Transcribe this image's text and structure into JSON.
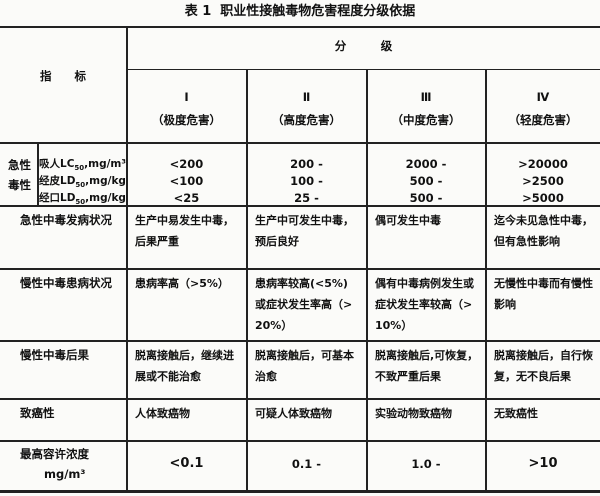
{
  "title": "表 1  职业性接触毒物危害程度分级依据",
  "header": {
    "indicator": "指　　标",
    "grading": "分　　　级",
    "levels": [
      {
        "roman": "Ⅰ",
        "label": "（极度危害）"
      },
      {
        "roman": "Ⅱ",
        "label": "（高度危害）"
      },
      {
        "roman": "Ⅲ",
        "label": "（中度危害）"
      },
      {
        "roman": "Ⅳ",
        "label": "（轻度危害）"
      }
    ]
  },
  "acute_toxicity": {
    "label_line1": "急性",
    "label_line2": "毒性",
    "rows": [
      {
        "name": "吸人LC",
        "sub": "50",
        "unit": ",mg/m³",
        "values": [
          "<200",
          "200 -",
          "2000 -",
          ">20000"
        ]
      },
      {
        "name": "经皮LD",
        "sub": "50",
        "unit": ",mg/kg",
        "values": [
          "<100",
          "100 -",
          "500 -",
          ">2500"
        ]
      },
      {
        "name": "经口LD",
        "sub": "50",
        "unit": ",mg/kg",
        "values": [
          "<25",
          "25 -",
          "500 -",
          ">5000"
        ]
      }
    ]
  },
  "rows": [
    {
      "label": "急性中毒发病状况",
      "values": [
        "生产中易发生中毒，\n后果严重",
        "生产中可发生中毒，\n预后良好",
        "偶可发生中毒",
        "迄今未见急性中毒，\n但有急性影响"
      ]
    },
    {
      "label": "慢性中毒患病状况",
      "values": [
        "患病率高（>5%）",
        "患病率较高(<5%)\n或症状发生率高（>\n20%）",
        "偶有中毒病例发生或\n症状发生率较高（>\n10%）",
        "无慢性中毒而有慢性\n影响"
      ]
    },
    {
      "label": "慢性中毒后果",
      "values": [
        "脱离接触后，继续进\n展或不能治愈",
        "脱离接触后，可基本\n治愈",
        "脱离接触后,可恢复，\n不致严重后果",
        "脱离接触后，自行恢\n复，无不良后果"
      ]
    },
    {
      "label": "致癌性",
      "values": [
        "人体致癌物",
        "可疑人体致癌物",
        "实验动物致癌物",
        "无致癌性"
      ]
    }
  ],
  "mac": {
    "label_line1": "最高容许浓度",
    "label_line2": "mg/m³",
    "values": [
      "<0.1",
      "0.1 -",
      "1.0 -",
      ">10"
    ]
  }
}
